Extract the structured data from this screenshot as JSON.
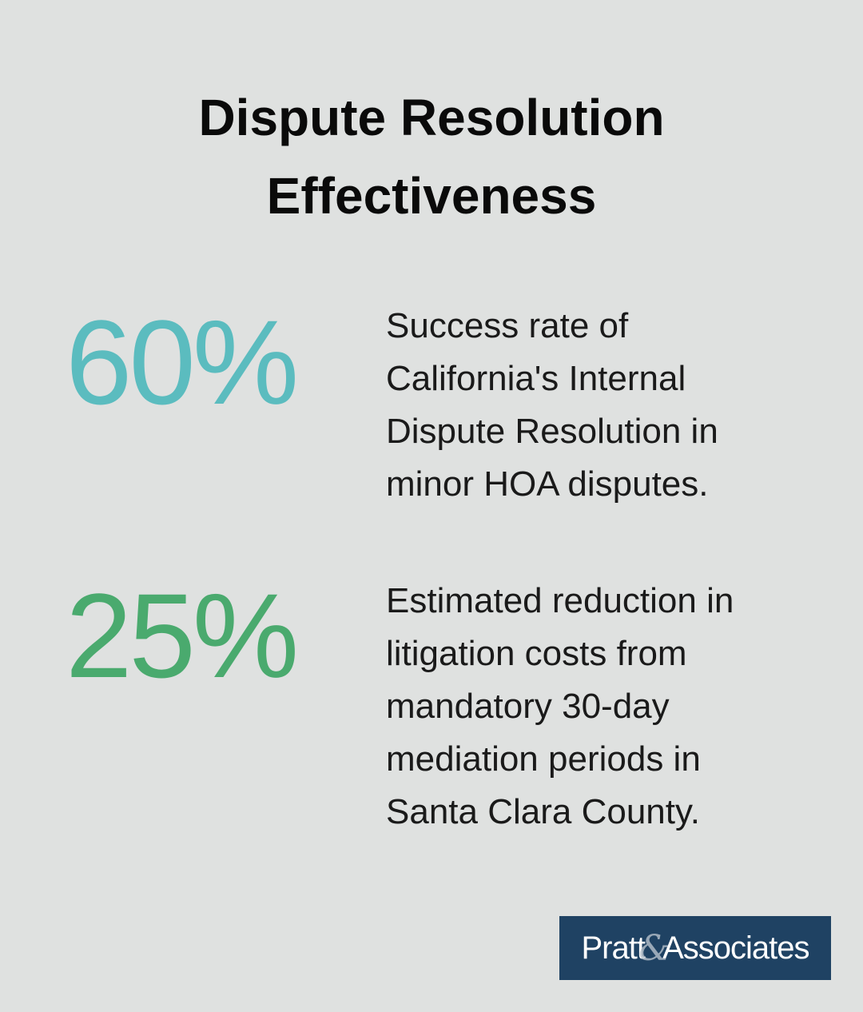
{
  "title_lines": [
    "Dispute Resolution",
    "Effectiveness"
  ],
  "stats": [
    {
      "value": "60%",
      "color": "#5bbcbf",
      "description_lines": [
        "Success rate of",
        "California's Internal",
        "Dispute Resolution in",
        "minor HOA disputes."
      ]
    },
    {
      "value": "25%",
      "color": "#4aaa6e",
      "description_lines": [
        "Estimated reduction in",
        "litigation costs from",
        "mandatory 30-day",
        "mediation periods in",
        "Santa Clara County."
      ]
    }
  ],
  "logo": {
    "left": "Pratt",
    "ampersand": "&",
    "right": "Associates",
    "background": "#1f4263"
  }
}
